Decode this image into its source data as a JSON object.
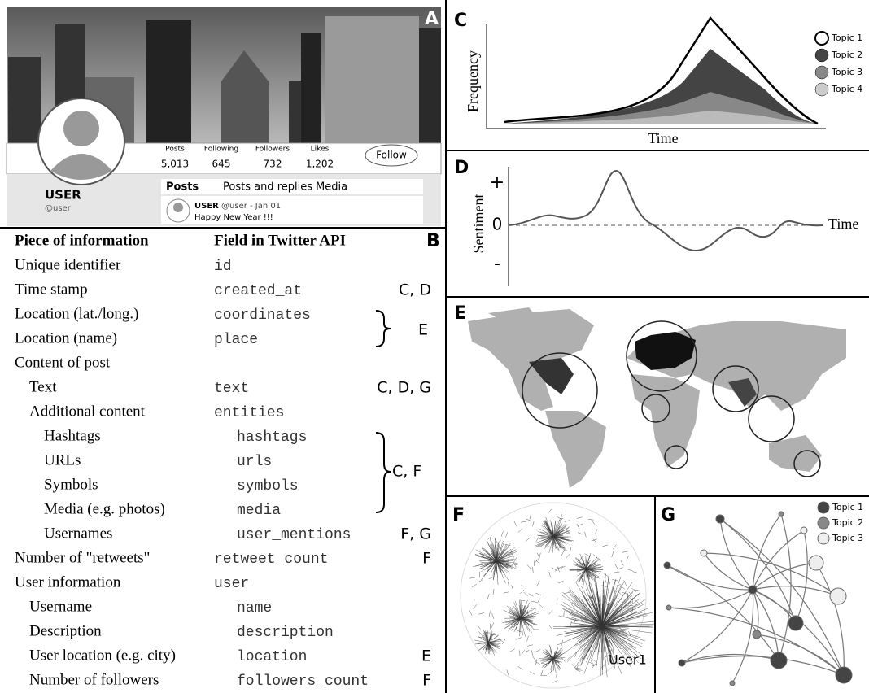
{
  "panels": {
    "a": "A",
    "b": "B",
    "c": "C",
    "d": "D",
    "e": "E",
    "f": "F",
    "g": "G"
  },
  "profile": {
    "stats": [
      {
        "label": "Posts",
        "value": "5,013"
      },
      {
        "label": "Following",
        "value": "645"
      },
      {
        "label": "Followers",
        "value": "732"
      },
      {
        "label": "Likes",
        "value": "1,202"
      }
    ],
    "follow": "Follow",
    "name": "USER",
    "handle": "@user",
    "tabs": [
      "Posts",
      "Posts and replies",
      "Media"
    ],
    "tweet": {
      "author": "USER",
      "meta": "@user - Jan 01",
      "text": "Happy New Year !!!"
    }
  },
  "table": {
    "header": [
      "Piece of information",
      "Field in Twitter API"
    ],
    "rows": [
      {
        "info": "Unique identifier",
        "field": "id"
      },
      {
        "info": "Time stamp",
        "field": "created_at",
        "refs": "C, D"
      },
      {
        "info": "Location (lat./long.)",
        "field": "coordinates"
      },
      {
        "info": "Location (name)",
        "field": "place"
      },
      {
        "info": "Content of post"
      },
      {
        "info": "Text",
        "field": "text",
        "refs": "C, D, G"
      },
      {
        "info": "Additional content",
        "field": "entities"
      },
      {
        "info": "Hashtags",
        "field": "hashtags"
      },
      {
        "info": "URLs",
        "field": "urls"
      },
      {
        "info": "Symbols",
        "field": "symbols"
      },
      {
        "info": "Media (e.g. photos)",
        "field": "media"
      },
      {
        "info": "Usernames",
        "field": "user_mentions",
        "refs": "F, G"
      },
      {
        "info": "Number of \"retweets\"",
        "field": "retweet_count",
        "refs": "F"
      },
      {
        "info": "User information",
        "field": "user"
      },
      {
        "info": "Username",
        "field": "name"
      },
      {
        "info": "Description",
        "field": "description"
      },
      {
        "info": "User location (e.g. city)",
        "field": "location",
        "refs": "E"
      },
      {
        "info": "Number of followers",
        "field": "followers_count",
        "refs": "F"
      }
    ],
    "bracket_refs": [
      "E",
      "C, F"
    ]
  },
  "chart_c": {
    "y_label": "Frequency",
    "x_label": "Time",
    "legend": [
      "Topic 1",
      "Topic 2",
      "Topic 3",
      "Topic 4"
    ]
  },
  "chart_d": {
    "y_label": "Sentiment",
    "x_label": "Time",
    "plus": "+",
    "zero": "0",
    "minus": "-"
  },
  "chart_f": {
    "label": "User1"
  },
  "chart_g": {
    "legend": [
      "Topic 1",
      "Topic 2",
      "Topic 3"
    ]
  }
}
